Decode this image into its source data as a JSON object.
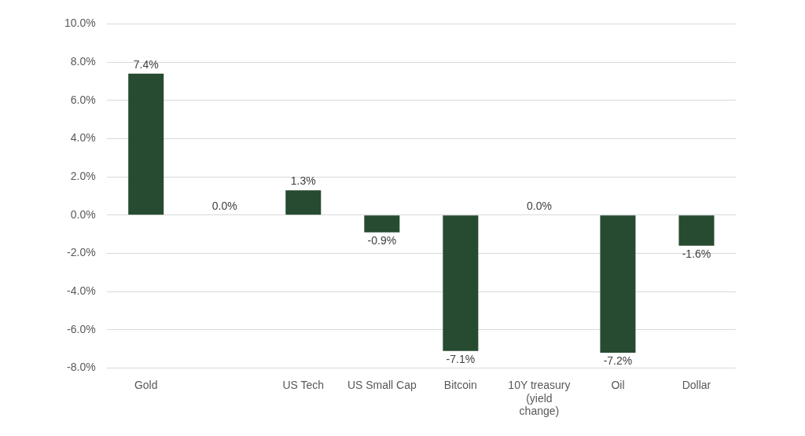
{
  "chart_data": {
    "type": "bar",
    "categories": [
      "Gold",
      null,
      "US Tech",
      "US Small Cap",
      "Bitcoin",
      "10Y treasury (yield change)",
      "Oil",
      "Dollar"
    ],
    "values": [
      7.4,
      0.0,
      1.3,
      -0.9,
      -7.1,
      0.0,
      -7.2,
      -1.6
    ],
    "value_labels": [
      "7.4%",
      "0.0%",
      "1.3%",
      "-0.9%",
      "-7.1%",
      "0.0%",
      "-7.2%",
      "-1.6%"
    ],
    "color": "#264b30",
    "ylim": [
      -8,
      10
    ],
    "yticks": [
      {
        "value": -8,
        "label": "-8.0%"
      },
      {
        "value": -6,
        "label": "-6.0%"
      },
      {
        "value": -4,
        "label": "-4.0%"
      },
      {
        "value": -2,
        "label": "-2.0%"
      },
      {
        "value": 0,
        "label": "0.0%"
      },
      {
        "value": 2,
        "label": "2.0%"
      },
      {
        "value": 4,
        "label": "4.0%"
      },
      {
        "value": 6,
        "label": "6.0%"
      },
      {
        "value": 8,
        "label": "8.0%"
      },
      {
        "value": 10,
        "label": "10.0%"
      }
    ],
    "grid": "y",
    "legend": false
  }
}
